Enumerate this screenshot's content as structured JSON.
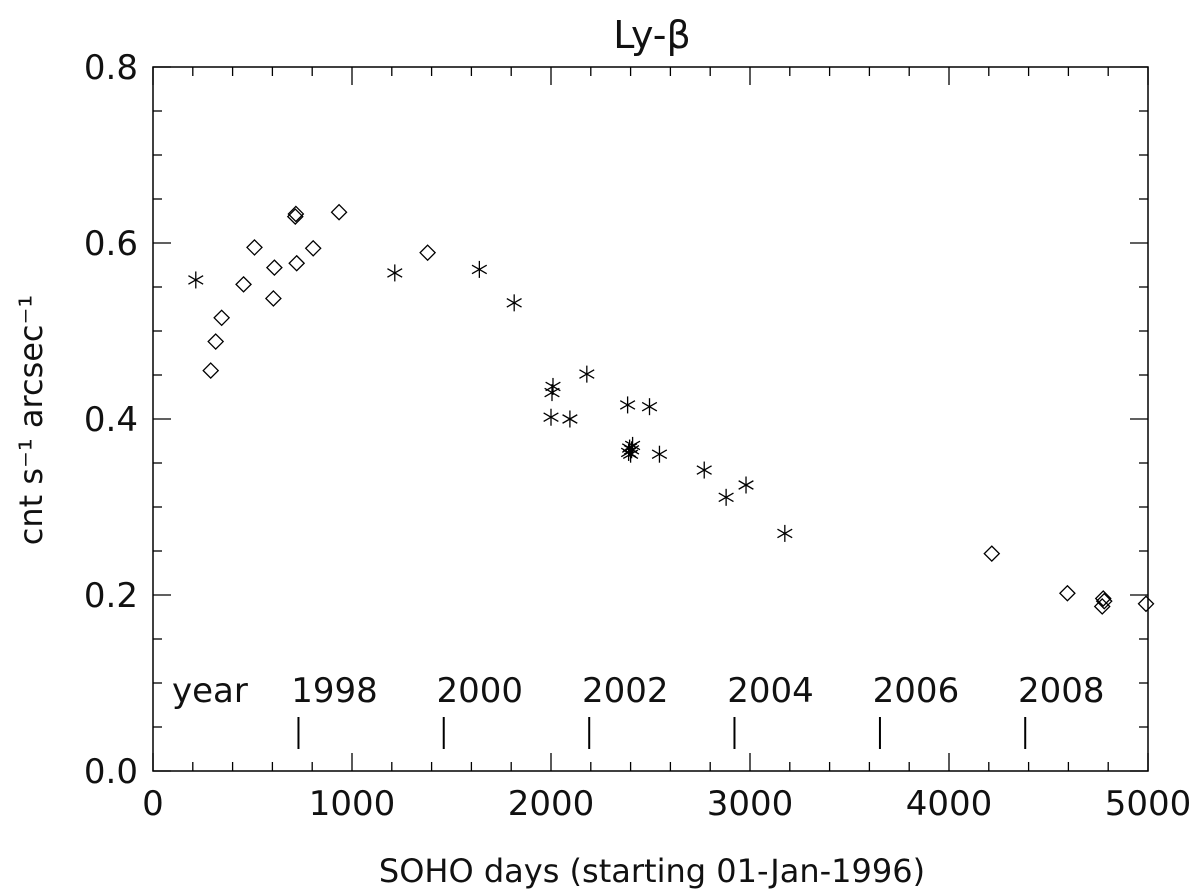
{
  "chart_data": {
    "type": "scatter",
    "title": "Ly-β",
    "xlabel": "SOHO days (starting 01-Jan-1996)",
    "ylabel": "cnt s⁻¹ arcsec⁻¹",
    "xlim": [
      0,
      5000
    ],
    "ylim": [
      0,
      0.8
    ],
    "x_ticks": [
      0,
      1000,
      2000,
      3000,
      4000,
      5000
    ],
    "x_tick_labels": [
      "0",
      "1000",
      "2000",
      "3000",
      "4000",
      "5000"
    ],
    "y_ticks": [
      0.0,
      0.2,
      0.4,
      0.6,
      0.8
    ],
    "y_tick_labels": [
      "0.0",
      "0.2",
      "0.4",
      "0.6",
      "0.8"
    ],
    "grid": false,
    "series": [
      {
        "marker": "diamond",
        "points": [
          [
            290,
            0.455
          ],
          [
            315,
            0.488
          ],
          [
            345,
            0.515
          ],
          [
            455,
            0.553
          ],
          [
            510,
            0.595
          ],
          [
            605,
            0.537
          ],
          [
            610,
            0.572
          ],
          [
            715,
            0.63
          ],
          [
            718,
            0.633
          ],
          [
            722,
            0.577
          ],
          [
            805,
            0.594
          ],
          [
            935,
            0.635
          ],
          [
            1380,
            0.589
          ],
          [
            4215,
            0.247
          ],
          [
            4595,
            0.202
          ],
          [
            4770,
            0.187
          ],
          [
            4775,
            0.196
          ],
          [
            4780,
            0.193
          ],
          [
            4990,
            0.19
          ]
        ]
      },
      {
        "marker": "asterisk",
        "points": [
          [
            215,
            0.558
          ],
          [
            1215,
            0.566
          ],
          [
            1640,
            0.57
          ],
          [
            1815,
            0.532
          ],
          [
            2000,
            0.402
          ],
          [
            2005,
            0.43
          ],
          [
            2010,
            0.437
          ],
          [
            2095,
            0.4
          ],
          [
            2180,
            0.451
          ],
          [
            2385,
            0.416
          ],
          [
            2390,
            0.362
          ],
          [
            2395,
            0.367
          ],
          [
            2400,
            0.36
          ],
          [
            2405,
            0.365
          ],
          [
            2410,
            0.37
          ],
          [
            2495,
            0.414
          ],
          [
            2545,
            0.36
          ],
          [
            2770,
            0.342
          ],
          [
            2880,
            0.311
          ],
          [
            2980,
            0.325
          ],
          [
            3175,
            0.27
          ]
        ]
      }
    ],
    "year_annotations": {
      "prefix": "year",
      "labels": [
        "1998",
        "2000",
        "2002",
        "2004",
        "2006",
        "2008"
      ],
      "day_positions": [
        731,
        1461,
        2192,
        2922,
        3653,
        4383
      ]
    }
  }
}
